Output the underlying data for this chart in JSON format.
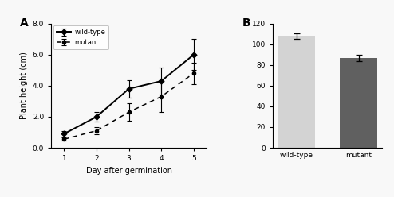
{
  "panel_A": {
    "x": [
      1,
      2,
      3,
      4,
      5
    ],
    "wildtype_y": [
      0.9,
      2.0,
      3.8,
      4.3,
      6.0
    ],
    "wildtype_err": [
      0.2,
      0.3,
      0.55,
      0.85,
      1.0
    ],
    "mutant_y": [
      0.55,
      1.1,
      2.3,
      3.3,
      4.8
    ],
    "mutant_err": [
      0.1,
      0.25,
      0.55,
      1.0,
      0.7
    ],
    "xlabel": "Day after germination",
    "ylabel": "Plant height (cm)",
    "ylim": [
      0.0,
      8.0
    ],
    "yticks": [
      0.0,
      2.0,
      4.0,
      6.0,
      8.0
    ],
    "ytick_labels": [
      "0.0",
      "2.0",
      "4.0",
      "6.0",
      "8.0"
    ],
    "legend_wildtype": "wild-type",
    "legend_mutant": "mutant",
    "panel_label": "A"
  },
  "panel_B": {
    "categories": [
      "wild-type",
      "mutant"
    ],
    "values": [
      108.0,
      87.0
    ],
    "errors": [
      2.5,
      3.0
    ],
    "bar_colors": [
      "#d3d3d3",
      "#606060"
    ],
    "ylim": [
      0,
      120
    ],
    "yticks": [
      0,
      20,
      40,
      60,
      80,
      100,
      120
    ],
    "panel_label": "B"
  },
  "figure_bg": "#f5f5f5"
}
